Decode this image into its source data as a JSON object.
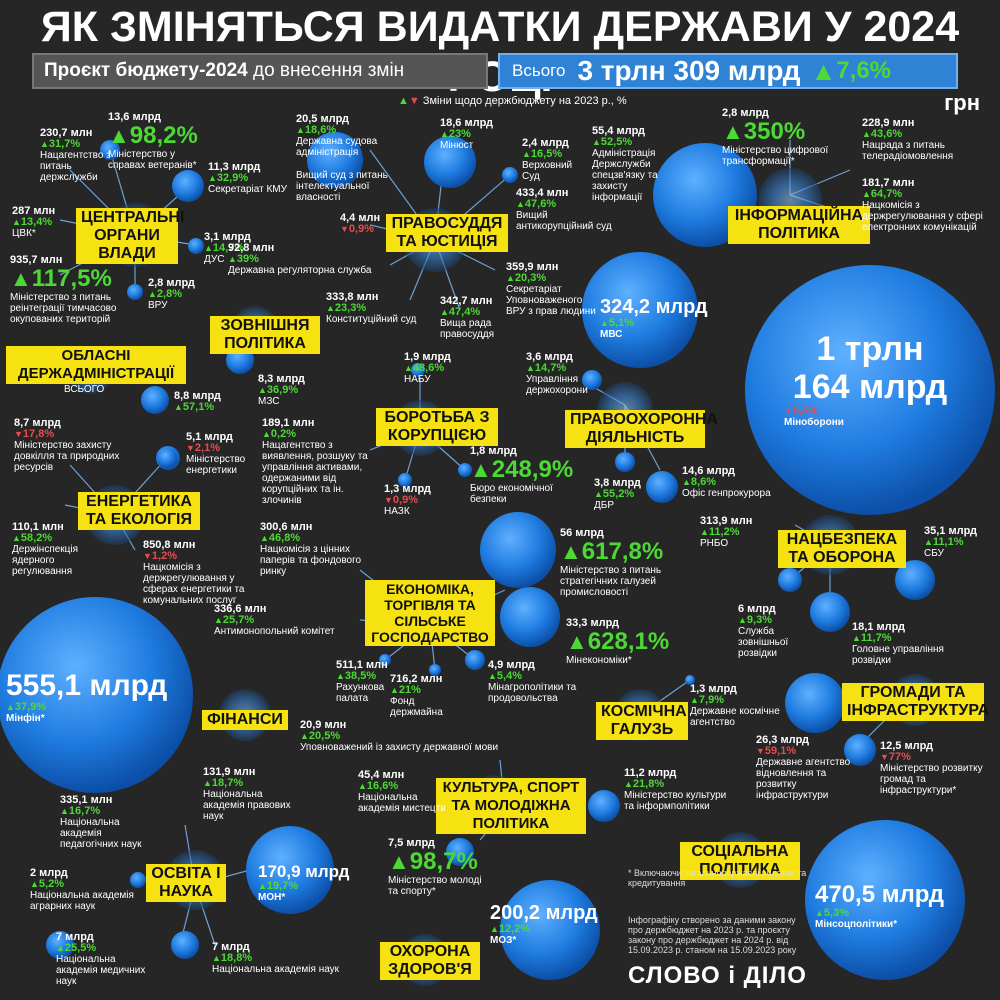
{
  "title": "ЯК ЗМІНЯТЬСЯ ВИДАТКИ ДЕРЖАВИ У 2024 РОЦІ",
  "subtitle_left_bold": "Проєкт бюджету-2024",
  "subtitle_left_rest": "до внесення змін",
  "total_label": "Всього",
  "total_value": "3 трлн 309 млрд",
  "total_change": "7,6%",
  "legend_text": "Зміни щодо держбюджету на 2023 р., %",
  "unit": "грн",
  "categories": {
    "central": "ЦЕНТРАЛЬНІ ОРГАНИ ВЛАДИ",
    "justice": "ПРАВОСУДДЯ ТА ЮСТИЦІЯ",
    "info": "ІНФОРМАЦІЙНА ПОЛІТИКА",
    "foreign": "ЗОВНІШНЯ ПОЛІТИКА",
    "regional": "ОБЛАСНІ ДЕРЖАДМІНІСТРАЦІЇ",
    "regional_sub": "ВСЬОГО",
    "corruption": "БОРОТЬБА З КОРУПЦІЄЮ",
    "law": "ПРАВООХОРОННА ДІЯЛЬНІСТЬ",
    "energy": "ЕНЕРГЕТИКА ТА ЕКОЛОГІЯ",
    "security": "НАЦБЕЗПЕКА ТА ОБОРОНА",
    "economy": "ЕКОНОМІКА, ТОРГІВЛЯ ТА СІЛЬСЬКЕ ГОСПОДАРСТВО",
    "finance": "ФІНАНСИ",
    "space": "КОСМІЧНА ГАЛУЗЬ",
    "communities": "ГРОМАДИ ТА ІНФРАСТРУКТУРА",
    "culture": "КУЛЬТУРА, СПОРТ ТА МОЛОДІЖНА ПОЛІТИКА",
    "education": "ОСВІТА І НАУКА",
    "social": "СОЦІАЛЬНА ПОЛІТИКА",
    "health": "ОХОРОНА ЗДОРОВ'Я"
  },
  "big_bubbles": {
    "defense": {
      "value_line1": "1 трлн",
      "value_line2": "164 млрд",
      "change": "5,5%",
      "label": "Міноборони"
    },
    "finance": {
      "value": "555,1 млрд",
      "change": "37,9%",
      "label": "Мінфін*"
    },
    "social": {
      "value": "470,5 млрд",
      "change": "5,3%",
      "label": "Мінсоцполітики*"
    },
    "police": {
      "value": "324,2 млрд",
      "change": "5,1%",
      "label": "МВС"
    },
    "health": {
      "value": "200,2 млрд",
      "change": "12,2%",
      "label": "МОЗ*"
    },
    "education": {
      "value": "170,9 млрд",
      "change": "19,7%",
      "label": "МОН*"
    }
  },
  "items": [
    {
      "id": "veterans",
      "value": "13,6 млрд",
      "change": "98,2%",
      "dir": "up",
      "huge": true,
      "label": "Міністерство у справах ветеранів*"
    },
    {
      "id": "civil",
      "value": "230,7 млн",
      "change": "31,7%",
      "dir": "up",
      "label": "Нацагентство з питань держслужби"
    },
    {
      "id": "kmu",
      "value": "11,3 млрд",
      "change": "32,9%",
      "dir": "up",
      "label": "Секретаріат КМУ"
    },
    {
      "id": "cvk",
      "value": "287 млн",
      "change": "13,4%",
      "dir": "up",
      "label": "ЦВК*"
    },
    {
      "id": "dus",
      "value": "3,1 млрд",
      "change": "14,7%",
      "dir": "up",
      "label": "ДУС"
    },
    {
      "id": "reint",
      "value": "935,7 млн",
      "change": "117,5%",
      "dir": "up",
      "huge": true,
      "label": "Міністерство з питань реінтеграції тимчасово окупованих територій"
    },
    {
      "id": "vru",
      "value": "2,8 млрд",
      "change": "2,8%",
      "dir": "up",
      "label": "ВРУ"
    },
    {
      "id": "court_admin",
      "value": "20,5 млрд",
      "change": "18,6%",
      "dir": "up",
      "label": "Державна судова адміністрація"
    },
    {
      "id": "ip_court",
      "value": "",
      "change": "",
      "dir": "up",
      "label": "Вищий суд з питань інтелектуальної власності"
    },
    {
      "id": "ip_court_val",
      "value": "4,4 млн",
      "change": "0,9%",
      "dir": "dn",
      "label": ""
    },
    {
      "id": "reg_service",
      "value": "92,8 млн",
      "change": "39%",
      "dir": "up",
      "label": "Державна регуляторна служба"
    },
    {
      "id": "minjust",
      "value": "18,6 млрд",
      "change": "23%",
      "dir": "up",
      "label": "Мінюст"
    },
    {
      "id": "supreme",
      "value": "2,4 млрд",
      "change": "16,5%",
      "dir": "up",
      "label": "Верховний Суд"
    },
    {
      "id": "anticorr_court",
      "value": "433,4 млн",
      "change": "47,6%",
      "dir": "up",
      "label": "Вищий антикорупційний суд"
    },
    {
      "id": "const_court",
      "value": "333,8 млн",
      "change": "23,3%",
      "dir": "up",
      "label": "Конституційний суд"
    },
    {
      "id": "vrp",
      "value": "342,7 млн",
      "change": "47,4%",
      "dir": "up",
      "label": "Вища рада правосуддя"
    },
    {
      "id": "ombudsman",
      "value": "359,9 млн",
      "change": "20,3%",
      "dir": "up",
      "label": "Секретаріат Уповноваженого ВРУ з прав людини"
    },
    {
      "id": "dsszzi",
      "value": "55,4 млрд",
      "change": "52,5%",
      "dir": "up",
      "label": "Адміністрація Держслужби спецзв'язку та захисту інформації"
    },
    {
      "id": "digital",
      "value": "2,8 млрд",
      "change": "350%",
      "dir": "up",
      "huge": true,
      "label": "Міністерство цифрової трансформації*"
    },
    {
      "id": "tv_council",
      "value": "228,9 млн",
      "change": "43,6%",
      "dir": "up",
      "label": "Нацрада з питань телерадіомовлення"
    },
    {
      "id": "telecom",
      "value": "181,7 млн",
      "change": "64,7%",
      "dir": "up",
      "label": "Нацкомісія з держрегулювання у сфері електронних комунікацій"
    },
    {
      "id": "mfa",
      "value": "8,3 млрд",
      "change": "36,9%",
      "dir": "up",
      "label": "МЗС"
    },
    {
      "id": "oda",
      "value": "8,8 млрд",
      "change": "57,1%",
      "dir": "up",
      "label": ""
    },
    {
      "id": "nabu",
      "value": "1,9 млрд",
      "change": "48,6%",
      "dir": "up",
      "label": "НАБУ"
    },
    {
      "id": "arma",
      "value": "189,1 млн",
      "change": "0,2%",
      "dir": "up",
      "label": "Нацагентство з виявлення, розшуку та управління активами, одержаними від корупційних та ін. злочинів"
    },
    {
      "id": "nazk",
      "value": "1,3 млрд",
      "change": "0,9%",
      "dir": "dn",
      "label": "НАЗК"
    },
    {
      "id": "beb",
      "value": "1,8 млрд",
      "change": "248,9%",
      "dir": "up",
      "huge": true,
      "label": "Бюро економічної безпеки"
    },
    {
      "id": "guard",
      "value": "3,6 млрд",
      "change": "14,7%",
      "dir": "up",
      "label": "Управління держохорони"
    },
    {
      "id": "dbr",
      "value": "3,8 млрд",
      "change": "55,2%",
      "dir": "up",
      "label": "ДБР"
    },
    {
      "id": "prosecutor",
      "value": "14,6 млрд",
      "change": "8,6%",
      "dir": "up",
      "label": "Офіс генпрокурора"
    },
    {
      "id": "environment",
      "value": "8,7 млрд",
      "change": "17,8%",
      "dir": "dn",
      "label": "Міністерство захисту довкілля та природних ресурсів"
    },
    {
      "id": "minenergo",
      "value": "5,1 млрд",
      "change": "2,1%",
      "dir": "dn",
      "label": "Міністерство енергетики"
    },
    {
      "id": "nuclear",
      "value": "110,1 млн",
      "change": "58,2%",
      "dir": "up",
      "label": "Держінспекція ядерного регулювання"
    },
    {
      "id": "nkrekp",
      "value": "850,8 млн",
      "change": "1,2%",
      "dir": "dn",
      "label": "Нацкомісія з держрегулювання у сферах енергетики та комунальних послуг"
    },
    {
      "id": "rnbo",
      "value": "313,9 млн",
      "change": "11,2%",
      "dir": "up",
      "label": "РНБО"
    },
    {
      "id": "sbu",
      "value": "35,1 млрд",
      "change": "11,1%",
      "dir": "up",
      "label": "СБУ"
    },
    {
      "id": "szr",
      "value": "6 млрд",
      "change": "9,3%",
      "dir": "up",
      "label": "Служба зовнішньої розвідки"
    },
    {
      "id": "gur",
      "value": "18,1 млрд",
      "change": "11,7%",
      "dir": "up",
      "label": "Головне управління розвідки"
    },
    {
      "id": "securities",
      "value": "300,6 млн",
      "change": "46,8%",
      "dir": "up",
      "label": "Нацкомісія з цінних паперів та фондового ринку"
    },
    {
      "id": "strategic",
      "value": "56 млрд",
      "change": "617,8%",
      "dir": "up",
      "huge": true,
      "label": "Міністерство з питань стратегічних галузей промисловості"
    },
    {
      "id": "amcu",
      "value": "336,6 млн",
      "change": "25,7%",
      "dir": "up",
      "label": "Антимонопольний комітет"
    },
    {
      "id": "mineconomy",
      "value": "33,3 млрд",
      "change": "628,1%",
      "dir": "up",
      "huge": true,
      "label": "Мінекономіки*"
    },
    {
      "id": "audit",
      "value": "511,1 млн",
      "change": "38,5%",
      "dir": "up",
      "label": "Рахункова палата"
    },
    {
      "id": "spf",
      "value": "716,2 млн",
      "change": "21%",
      "dir": "up",
      "label": "Фонд держмайна"
    },
    {
      "id": "minagro",
      "value": "4,9 млрд",
      "change": "5,4%",
      "dir": "up",
      "label": "Мінагрополітики та продовольства"
    },
    {
      "id": "space_agency",
      "value": "1,3 млрд",
      "change": "7,9%",
      "dir": "up",
      "label": "Державне космічне агентство"
    },
    {
      "id": "restoration",
      "value": "26,3 млрд",
      "change": "59,1%",
      "dir": "dn",
      "label": "Державне агентство відновлення та розвитку інфраструктури"
    },
    {
      "id": "mininfra",
      "value": "12,5 млрд",
      "change": "77%",
      "dir": "dn",
      "label": "Міністерство розвитку громад та інфраструктури*"
    },
    {
      "id": "language",
      "value": "20,9 млн",
      "change": "20,5%",
      "dir": "up",
      "label": "Уповноважений із захисту державної мови"
    },
    {
      "id": "arts_acad",
      "value": "45,4 млн",
      "change": "16,6%",
      "dir": "up",
      "label": "Національна академія мистецтв"
    },
    {
      "id": "minculture",
      "value": "11,2 млрд",
      "change": "21,8%",
      "dir": "up",
      "label": "Міністерство культури та інформполітики"
    },
    {
      "id": "minyouth",
      "value": "7,5 млрд",
      "change": "98,7%",
      "dir": "up",
      "huge": true,
      "label": "Міністерство молоді та спорту*"
    },
    {
      "id": "law_acad",
      "value": "131,9 млн",
      "change": "18,7%",
      "dir": "up",
      "label": "Національна академія правових наук"
    },
    {
      "id": "ped_acad",
      "value": "335,1 млн",
      "change": "16,7%",
      "dir": "up",
      "label": "Національна академія педагогічних наук"
    },
    {
      "id": "agro_acad",
      "value": "2 млрд",
      "change": "5,2%",
      "dir": "up",
      "label": "Національна академія аграрних наук"
    },
    {
      "id": "med_acad",
      "value": "7 млрд",
      "change": "25,5%",
      "dir": "up",
      "label": "Національна академія медичних наук"
    },
    {
      "id": "nas",
      "value": "7 млрд",
      "change": "18,8%",
      "dir": "up",
      "label": "Національна академія наук"
    }
  ],
  "note": "* Включаючи загальнодержавні видатки та кредитування",
  "source": "Інфографіку створено за даними закону про держбюджет на 2023 р. та проєкту закону про держбюджет на 2024 р. від 15.09.2023 р. станом на 15.09.2023 року",
  "logo": "СЛОВО і ДІЛО"
}
